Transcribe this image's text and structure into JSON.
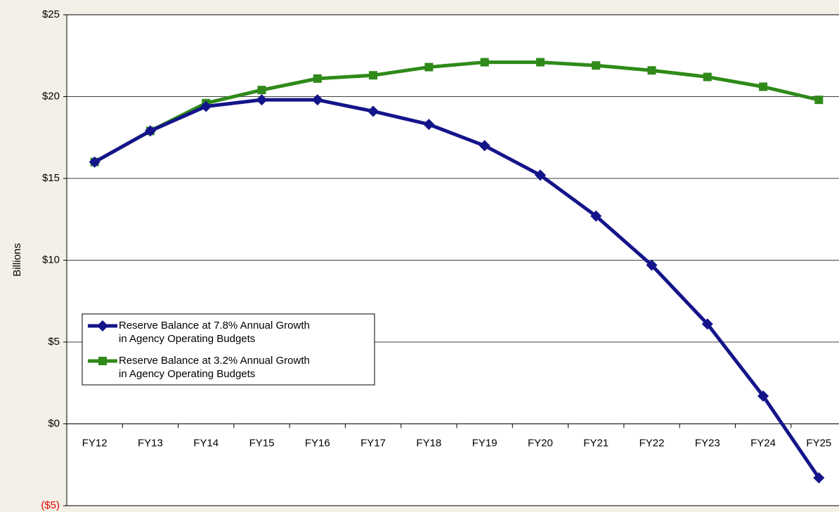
{
  "chart_data": {
    "type": "line",
    "y_label": "Billions",
    "categories": [
      "FY12",
      "FY13",
      "FY14",
      "FY15",
      "FY16",
      "FY17",
      "FY18",
      "FY19",
      "FY20",
      "FY21",
      "FY22",
      "FY23",
      "FY24",
      "FY25"
    ],
    "series": [
      {
        "name": "Reserve Balance at 7.8% Annual Growth in Agency Operating Budgets",
        "color": "#14148a",
        "marker": "diamond",
        "values": [
          16.0,
          17.9,
          19.4,
          19.8,
          19.8,
          19.1,
          18.3,
          17.0,
          15.2,
          12.7,
          9.7,
          6.1,
          1.7,
          -3.3
        ]
      },
      {
        "name": "Reserve Balance at 3.2% Annual Growth in Agency Operating Budgets",
        "color": "#2f8a19",
        "marker": "square",
        "values": [
          16.0,
          17.9,
          19.6,
          20.4,
          21.1,
          21.3,
          21.8,
          22.1,
          22.1,
          21.9,
          21.6,
          21.2,
          20.6,
          19.8
        ]
      }
    ],
    "ylim": [
      -5,
      25
    ],
    "yticks": [
      {
        "value": -5,
        "label": "($5)",
        "color": "#e00000"
      },
      {
        "value": 0,
        "label": "$0"
      },
      {
        "value": 5,
        "label": "$5"
      },
      {
        "value": 10,
        "label": "$10"
      },
      {
        "value": 15,
        "label": "$15"
      },
      {
        "value": 20,
        "label": "$20"
      },
      {
        "value": 25,
        "label": "$25"
      }
    ],
    "grid": true,
    "legend": "lower left"
  }
}
